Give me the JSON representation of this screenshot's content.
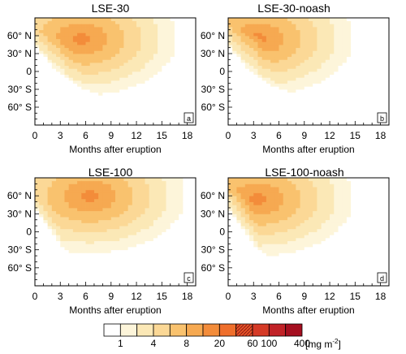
{
  "chart_data": {
    "type": "heatmap",
    "colorbar": {
      "unit_prefix": "[mg m",
      "unit_exp": "-2",
      "unit_suffix": "]",
      "labels": [
        "1",
        "4",
        "8",
        "20",
        "60",
        "100",
        "400"
      ],
      "label_after_bin": [
        0,
        2,
        4,
        6,
        8,
        9,
        11
      ],
      "colors": [
        "#ffffff",
        "#fdf5da",
        "#fbe8b6",
        "#fbd896",
        "#f9c26e",
        "#f6a951",
        "#f38c3a",
        "#ef6f2c",
        "#e55327",
        "#d53a26",
        "#c12227",
        "#a50f20"
      ],
      "hatched_bins": [
        8
      ]
    },
    "panels": [
      {
        "title": "LSE-30",
        "panel_label": "a",
        "xlabel": "Months after eruption",
        "xticks": [
          "0",
          "3",
          "6",
          "9",
          "12",
          "15",
          "18"
        ],
        "yticks": [
          "60° N",
          "30° N",
          "0",
          "30° S",
          "60° S"
        ],
        "x_range": [
          0,
          19
        ],
        "y_range": [
          -90,
          90
        ],
        "front": [
          [
            0,
            45
          ],
          [
            1,
            28
          ],
          [
            2,
            10
          ],
          [
            3,
            0
          ],
          [
            4,
            -15
          ],
          [
            6,
            -30
          ],
          [
            8,
            -40
          ],
          [
            10,
            -40
          ],
          [
            12,
            -35
          ],
          [
            15,
            -15
          ],
          [
            17,
            0
          ],
          [
            19,
            5
          ]
        ],
        "peak": [
          5.5,
          55
        ],
        "peak_level": 6,
        "high_lat_bias": 0.25
      },
      {
        "title": "LSE-30-noash",
        "panel_label": "b",
        "xlabel": "Months after eruption",
        "xticks": [
          "0",
          "3",
          "6",
          "9",
          "12",
          "15",
          "18"
        ],
        "yticks": [
          "60° N",
          "30° N",
          "0",
          "30° S",
          "60° S"
        ],
        "x_range": [
          0,
          19
        ],
        "y_range": [
          -90,
          90
        ],
        "front": [
          [
            0,
            45
          ],
          [
            1,
            28
          ],
          [
            2,
            10
          ],
          [
            3,
            0
          ],
          [
            4,
            -15
          ],
          [
            6,
            -28
          ],
          [
            8,
            -38
          ],
          [
            10,
            -40
          ],
          [
            12,
            -35
          ],
          [
            15,
            -15
          ],
          [
            17,
            0
          ],
          [
            19,
            5
          ]
        ],
        "peak": [
          3.5,
          55
        ],
        "peak_level": 6,
        "high_lat_bias": 0.2
      },
      {
        "title": "LSE-100",
        "panel_label": "c",
        "xlabel": "Months after eruption",
        "xticks": [
          "0",
          "3",
          "6",
          "9",
          "12",
          "15",
          "18"
        ],
        "yticks": [
          "60° N",
          "30° N",
          "0",
          "30° S",
          "60° S"
        ],
        "x_range": [
          0,
          19
        ],
        "y_range": [
          -90,
          90
        ],
        "front": [
          [
            0,
            40
          ],
          [
            1,
            20
          ],
          [
            2,
            0
          ],
          [
            3,
            -20
          ],
          [
            4,
            -35
          ],
          [
            6,
            -50
          ],
          [
            8,
            -55
          ],
          [
            10,
            -55
          ],
          [
            12,
            -50
          ],
          [
            15,
            -35
          ],
          [
            17,
            -20
          ],
          [
            19,
            -10
          ]
        ],
        "peak": [
          6.5,
          60
        ],
        "peak_level": 6,
        "high_lat_bias": 0.35
      },
      {
        "title": "LSE-100-noash",
        "panel_label": "d",
        "xlabel": "Months after eruption",
        "xticks": [
          "0",
          "3",
          "6",
          "9",
          "12",
          "15",
          "18"
        ],
        "yticks": [
          "60° N",
          "30° N",
          "0",
          "30° S",
          "60° S"
        ],
        "x_range": [
          0,
          19
        ],
        "y_range": [
          -90,
          90
        ],
        "front": [
          [
            0,
            40
          ],
          [
            1,
            20
          ],
          [
            2,
            0
          ],
          [
            3,
            -20
          ],
          [
            4,
            -35
          ],
          [
            6,
            -50
          ],
          [
            8,
            -58
          ],
          [
            10,
            -60
          ],
          [
            12,
            -55
          ],
          [
            15,
            -40
          ],
          [
            17,
            -25
          ],
          [
            19,
            -15
          ]
        ],
        "peak": [
          3.5,
          55
        ],
        "peak_level": 6,
        "high_lat_bias": 0.3
      }
    ]
  }
}
